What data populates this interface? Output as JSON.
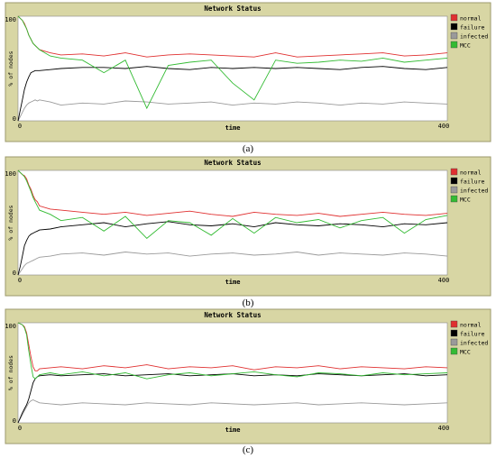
{
  "captions": [
    "(a)",
    "(b)",
    "(c)"
  ],
  "colors": {
    "frame_bg": "#d8d6a4",
    "frame_border": "#9c9a6c",
    "plot_bg": "#ffffff",
    "normal": "#e03030",
    "failure": "#000000",
    "infected": "#9a9a9a",
    "mcc": "#33bb33"
  },
  "chart_data": [
    {
      "type": "line",
      "title": "Network Status",
      "xlabel": "time",
      "ylabel": "% of nodes",
      "xlim": [
        0,
        400
      ],
      "ylim": [
        0,
        100
      ],
      "x_ticks": [
        "0",
        "400"
      ],
      "y_ticks": [
        "0",
        "100"
      ],
      "legend_position": "right",
      "series": [
        {
          "name": "normal",
          "color": "#e03030",
          "x": [
            0,
            2,
            4,
            6,
            8,
            10,
            12,
            14,
            16,
            18,
            20,
            30,
            40,
            60,
            80,
            100,
            120,
            140,
            160,
            180,
            200,
            220,
            240,
            260,
            280,
            300,
            320,
            340,
            360,
            380,
            400
          ],
          "values": [
            100,
            98,
            96,
            93,
            88,
            82,
            78,
            74,
            72,
            70,
            68,
            65,
            63,
            64,
            62,
            65,
            61,
            63,
            64,
            63,
            62,
            61,
            65,
            61,
            62,
            63,
            64,
            65,
            62,
            63,
            65
          ]
        },
        {
          "name": "failure",
          "color": "#000000",
          "x": [
            0,
            2,
            4,
            6,
            8,
            10,
            12,
            14,
            16,
            18,
            20,
            30,
            40,
            60,
            80,
            100,
            120,
            140,
            160,
            180,
            200,
            220,
            240,
            260,
            280,
            300,
            320,
            340,
            360,
            380,
            400
          ],
          "values": [
            0,
            10,
            20,
            30,
            37,
            42,
            46,
            47,
            48,
            48,
            48,
            49,
            50,
            51,
            51,
            50,
            52,
            50,
            49,
            51,
            50,
            51,
            50,
            51,
            50,
            49,
            51,
            52,
            50,
            49,
            51
          ]
        },
        {
          "name": "infected",
          "color": "#9a9a9a",
          "x": [
            0,
            2,
            4,
            6,
            8,
            10,
            12,
            14,
            16,
            18,
            20,
            30,
            40,
            60,
            80,
            100,
            120,
            140,
            160,
            180,
            200,
            220,
            240,
            260,
            280,
            300,
            320,
            340,
            360,
            380,
            400
          ],
          "values": [
            0,
            4,
            8,
            12,
            15,
            17,
            18,
            19,
            20,
            19,
            20,
            18,
            15,
            17,
            16,
            19,
            18,
            16,
            17,
            18,
            15,
            17,
            16,
            18,
            17,
            15,
            17,
            16,
            18,
            17,
            16
          ]
        },
        {
          "name": "MCC",
          "color": "#33bb33",
          "x": [
            0,
            2,
            4,
            6,
            8,
            10,
            12,
            14,
            16,
            18,
            20,
            30,
            40,
            60,
            80,
            100,
            120,
            140,
            160,
            180,
            200,
            220,
            240,
            260,
            280,
            300,
            320,
            340,
            360,
            380,
            400
          ],
          "values": [
            100,
            98,
            96,
            92,
            88,
            82,
            78,
            74,
            72,
            70,
            68,
            62,
            60,
            58,
            46,
            58,
            12,
            53,
            56,
            58,
            36,
            20,
            58,
            55,
            56,
            58,
            57,
            60,
            56,
            58,
            60
          ]
        }
      ]
    },
    {
      "type": "line",
      "title": "Network Status",
      "xlabel": "time",
      "ylabel": "% of nodes",
      "xlim": [
        0,
        400
      ],
      "ylim": [
        0,
        100
      ],
      "x_ticks": [
        "0",
        "400"
      ],
      "y_ticks": [
        "0",
        "100"
      ],
      "legend_position": "right",
      "series": [
        {
          "name": "normal",
          "color": "#e03030",
          "x": [
            0,
            2,
            4,
            6,
            8,
            10,
            12,
            14,
            16,
            18,
            20,
            30,
            40,
            60,
            80,
            100,
            120,
            140,
            160,
            180,
            200,
            220,
            240,
            260,
            280,
            300,
            320,
            340,
            360,
            380,
            400
          ],
          "values": [
            100,
            98,
            96,
            95,
            92,
            86,
            82,
            76,
            72,
            70,
            66,
            63,
            62,
            60,
            58,
            60,
            57,
            59,
            61,
            58,
            56,
            60,
            58,
            57,
            59,
            56,
            58,
            60,
            58,
            57,
            59
          ]
        },
        {
          "name": "failure",
          "color": "#000000",
          "x": [
            0,
            2,
            4,
            6,
            8,
            10,
            12,
            14,
            16,
            18,
            20,
            30,
            40,
            60,
            80,
            100,
            120,
            140,
            160,
            180,
            200,
            220,
            240,
            260,
            280,
            300,
            320,
            340,
            360,
            380,
            400
          ],
          "values": [
            0,
            8,
            18,
            28,
            33,
            37,
            39,
            40,
            41,
            42,
            43,
            44,
            46,
            48,
            50,
            46,
            49,
            51,
            48,
            47,
            49,
            46,
            50,
            48,
            47,
            49,
            48,
            46,
            49,
            48,
            50
          ]
        },
        {
          "name": "infected",
          "color": "#9a9a9a",
          "x": [
            0,
            2,
            4,
            6,
            8,
            10,
            12,
            14,
            16,
            18,
            20,
            30,
            40,
            60,
            80,
            100,
            120,
            140,
            160,
            180,
            200,
            220,
            240,
            260,
            280,
            300,
            320,
            340,
            360,
            380,
            400
          ],
          "values": [
            0,
            3,
            6,
            9,
            11,
            12,
            13,
            14,
            15,
            16,
            17,
            18,
            20,
            21,
            19,
            22,
            20,
            21,
            18,
            20,
            21,
            19,
            20,
            22,
            19,
            21,
            20,
            19,
            21,
            20,
            18
          ]
        },
        {
          "name": "MCC",
          "color": "#33bb33",
          "x": [
            0,
            2,
            4,
            6,
            8,
            10,
            12,
            14,
            16,
            18,
            20,
            30,
            40,
            60,
            80,
            100,
            120,
            140,
            160,
            180,
            200,
            220,
            240,
            260,
            280,
            300,
            320,
            340,
            360,
            380,
            400
          ],
          "values": [
            100,
            98,
            96,
            94,
            90,
            85,
            80,
            74,
            70,
            66,
            62,
            58,
            52,
            55,
            42,
            56,
            35,
            52,
            50,
            38,
            54,
            40,
            55,
            50,
            53,
            45,
            52,
            55,
            40,
            53,
            57
          ]
        }
      ]
    },
    {
      "type": "line",
      "title": "Network Status",
      "xlabel": "time",
      "ylabel": "% of nodes",
      "xlim": [
        0,
        400
      ],
      "ylim": [
        0,
        100
      ],
      "x_ticks": [
        "0",
        "400"
      ],
      "y_ticks": [
        "0",
        "100"
      ],
      "legend_position": "right",
      "series": [
        {
          "name": "normal",
          "color": "#e03030",
          "x": [
            0,
            2,
            4,
            6,
            8,
            10,
            12,
            14,
            16,
            18,
            20,
            30,
            40,
            60,
            80,
            100,
            120,
            140,
            160,
            180,
            200,
            220,
            240,
            260,
            280,
            300,
            320,
            340,
            360,
            380,
            400
          ],
          "values": [
            100,
            99,
            98,
            96,
            90,
            78,
            66,
            56,
            52,
            52,
            54,
            55,
            56,
            54,
            57,
            55,
            58,
            54,
            56,
            55,
            57,
            53,
            56,
            55,
            57,
            54,
            56,
            55,
            54,
            56,
            55
          ]
        },
        {
          "name": "failure",
          "color": "#000000",
          "x": [
            0,
            2,
            4,
            6,
            8,
            10,
            12,
            14,
            16,
            18,
            20,
            30,
            40,
            60,
            80,
            100,
            120,
            140,
            160,
            180,
            200,
            220,
            240,
            260,
            280,
            300,
            320,
            340,
            360,
            380,
            400
          ],
          "values": [
            0,
            5,
            10,
            14,
            18,
            24,
            32,
            40,
            44,
            46,
            47,
            48,
            47,
            48,
            49,
            47,
            48,
            49,
            47,
            48,
            49,
            47,
            48,
            47,
            49,
            48,
            47,
            48,
            49,
            47,
            48
          ]
        },
        {
          "name": "infected",
          "color": "#9a9a9a",
          "x": [
            0,
            2,
            4,
            6,
            8,
            10,
            12,
            14,
            16,
            18,
            20,
            30,
            40,
            60,
            80,
            100,
            120,
            140,
            160,
            180,
            200,
            220,
            240,
            260,
            280,
            300,
            320,
            340,
            360,
            380,
            400
          ],
          "values": [
            0,
            4,
            8,
            12,
            16,
            20,
            22,
            23,
            22,
            21,
            20,
            19,
            18,
            20,
            19,
            18,
            20,
            19,
            18,
            20,
            19,
            18,
            19,
            20,
            18,
            19,
            20,
            19,
            18,
            19,
            20
          ]
        },
        {
          "name": "MCC",
          "color": "#33bb33",
          "x": [
            0,
            2,
            4,
            6,
            8,
            10,
            12,
            14,
            16,
            18,
            20,
            30,
            40,
            60,
            80,
            100,
            120,
            140,
            160,
            180,
            200,
            220,
            240,
            260,
            280,
            300,
            320,
            340,
            360,
            380,
            400
          ],
          "values": [
            100,
            99,
            98,
            95,
            88,
            72,
            58,
            46,
            44,
            46,
            48,
            50,
            48,
            51,
            47,
            50,
            44,
            48,
            50,
            47,
            49,
            51,
            48,
            46,
            50,
            49,
            47,
            50,
            48,
            49,
            50
          ]
        }
      ]
    }
  ]
}
